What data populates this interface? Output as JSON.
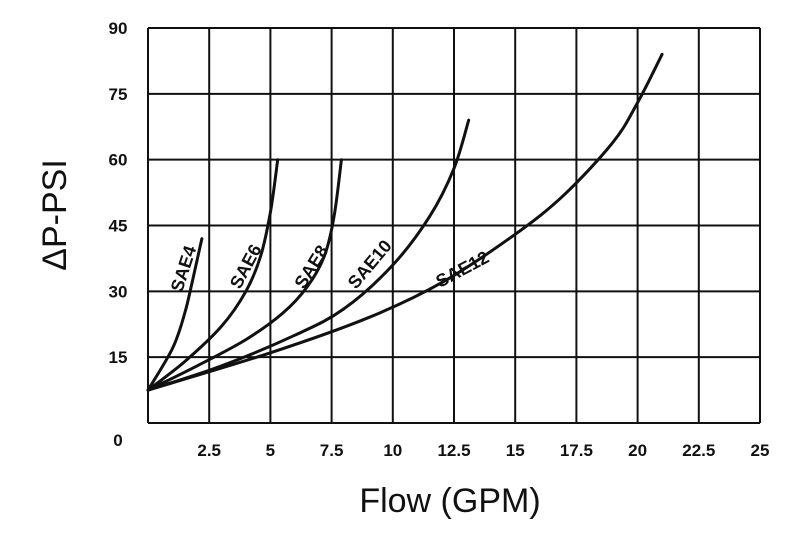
{
  "chart_data": {
    "type": "line",
    "xlabel": "Flow (GPM)",
    "ylabel": "ΔP-PSI",
    "xlim": [
      0,
      25
    ],
    "ylim": [
      0,
      90
    ],
    "x_ticks": [
      "2.5",
      "5",
      "7.5",
      "10",
      "12.5",
      "15",
      "17.5",
      "20",
      "22.5",
      "25"
    ],
    "y_ticks": [
      "0",
      "15",
      "30",
      "45",
      "60",
      "75",
      "90"
    ],
    "origin_label": "0",
    "grid": true,
    "colors": {
      "line": "#111111",
      "grid": "#111111"
    },
    "series": [
      {
        "name": "SAE4",
        "x": [
          0,
          1.0,
          1.5,
          1.8,
          2.0,
          2.2
        ],
        "y": [
          7.5,
          17,
          25,
          32,
          37,
          42
        ]
      },
      {
        "name": "SAE6",
        "x": [
          0,
          1.5,
          3.0,
          4.0,
          4.6,
          5.0,
          5.3
        ],
        "y": [
          7.5,
          14,
          22,
          30,
          38,
          48,
          60
        ]
      },
      {
        "name": "SAE8",
        "x": [
          0,
          2.0,
          4.0,
          5.5,
          6.5,
          7.2,
          7.6,
          7.9
        ],
        "y": [
          7.5,
          13,
          19,
          25,
          31,
          38,
          47,
          60
        ]
      },
      {
        "name": "SAE10",
        "x": [
          0,
          3.0,
          6.0,
          8.0,
          10.0,
          11.5,
          12.5,
          13.1
        ],
        "y": [
          7.5,
          13,
          20,
          26,
          36,
          47,
          58,
          69
        ]
      },
      {
        "name": "SAE12",
        "x": [
          0,
          5.0,
          9.0,
          12.0,
          15.0,
          17.0,
          19.0,
          20.0,
          21.0
        ],
        "y": [
          7.5,
          16,
          24,
          32,
          43,
          52,
          64,
          73,
          84
        ]
      }
    ]
  }
}
